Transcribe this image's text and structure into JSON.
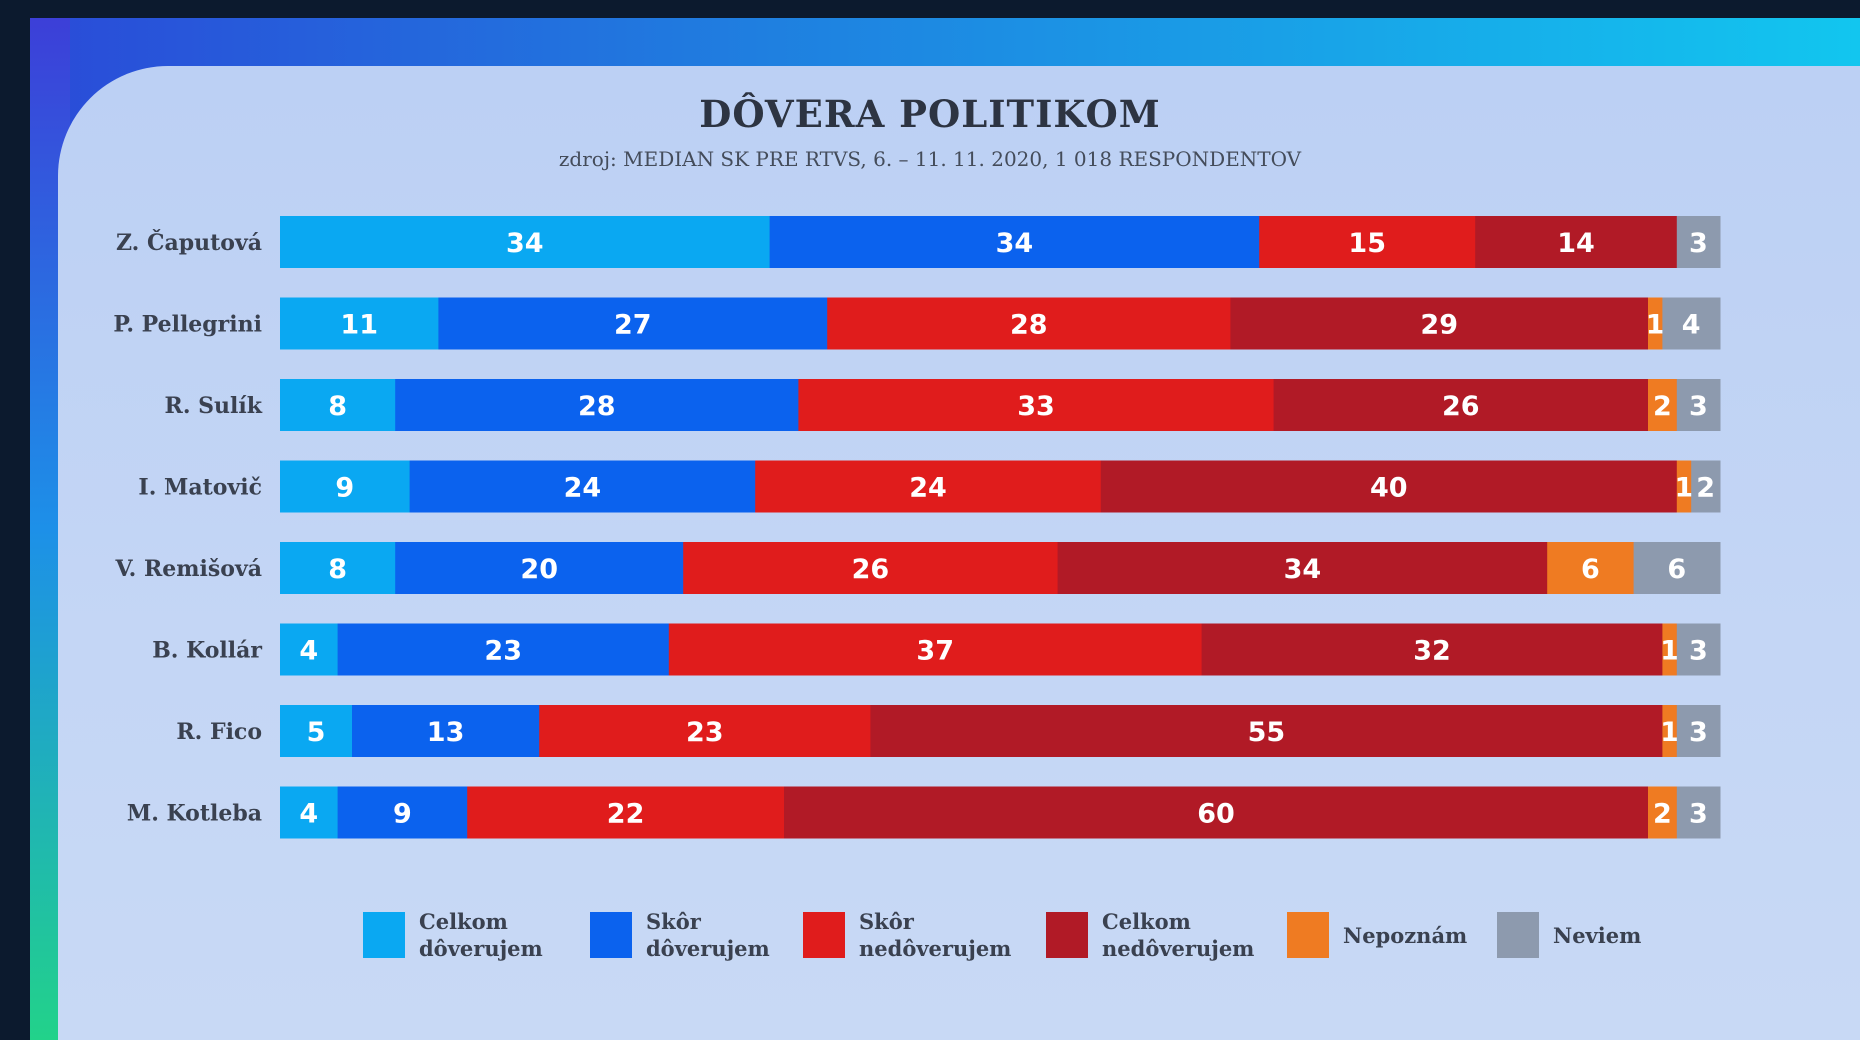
{
  "chart_data": {
    "type": "bar",
    "orientation": "horizontal",
    "stacked": true,
    "title": "DÔVERA POLITIKOM",
    "subtitle": "zdroj: MEDIAN SK PRE RTVS, 6. – 11. 11. 2020, 1 018 RESPONDENTOV",
    "categories": [
      "Z. Čaputová",
      "P. Pellegrini",
      "R. Sulík",
      "I. Matovič",
      "V. Remišová",
      "B. Kollár",
      "R. Fico",
      "M. Kotleba"
    ],
    "series": [
      {
        "name": "Celkom dôverujem",
        "color": "#0aa8f2",
        "values": [
          34,
          11,
          8,
          9,
          8,
          4,
          5,
          4
        ]
      },
      {
        "name": "Skôr dôverujem",
        "color": "#0b62ee",
        "values": [
          34,
          27,
          28,
          24,
          20,
          23,
          13,
          9
        ]
      },
      {
        "name": "Skôr nedôverujem",
        "color": "#e01c1c",
        "values": [
          15,
          28,
          33,
          24,
          26,
          37,
          23,
          22
        ]
      },
      {
        "name": "Celkom nedôverujem",
        "color": "#b11a26",
        "values": [
          14,
          29,
          26,
          40,
          34,
          32,
          55,
          60
        ]
      },
      {
        "name": "Nepoznám",
        "color": "#ef7b22",
        "values": [
          0,
          1,
          2,
          1,
          6,
          1,
          1,
          2
        ]
      },
      {
        "name": "Neviem",
        "color": "#8d9aae",
        "values": [
          3,
          4,
          3,
          2,
          6,
          3,
          3,
          3
        ]
      }
    ],
    "legend_placement": "bottom",
    "grid": false
  },
  "legend": {
    "items": [
      {
        "label": "Celkom\ndôverujem",
        "color": "#0aa8f2"
      },
      {
        "label": "Skôr\ndôverujem",
        "color": "#0b62ee"
      },
      {
        "label": "Skôr\nnedôverujem",
        "color": "#e01c1c"
      },
      {
        "label": "Celkom\nnedôverujem",
        "color": "#b11a26"
      },
      {
        "label": "Nepoznám",
        "color": "#ef7b22"
      },
      {
        "label": "Neviem",
        "color": "#8d9aae"
      }
    ]
  }
}
